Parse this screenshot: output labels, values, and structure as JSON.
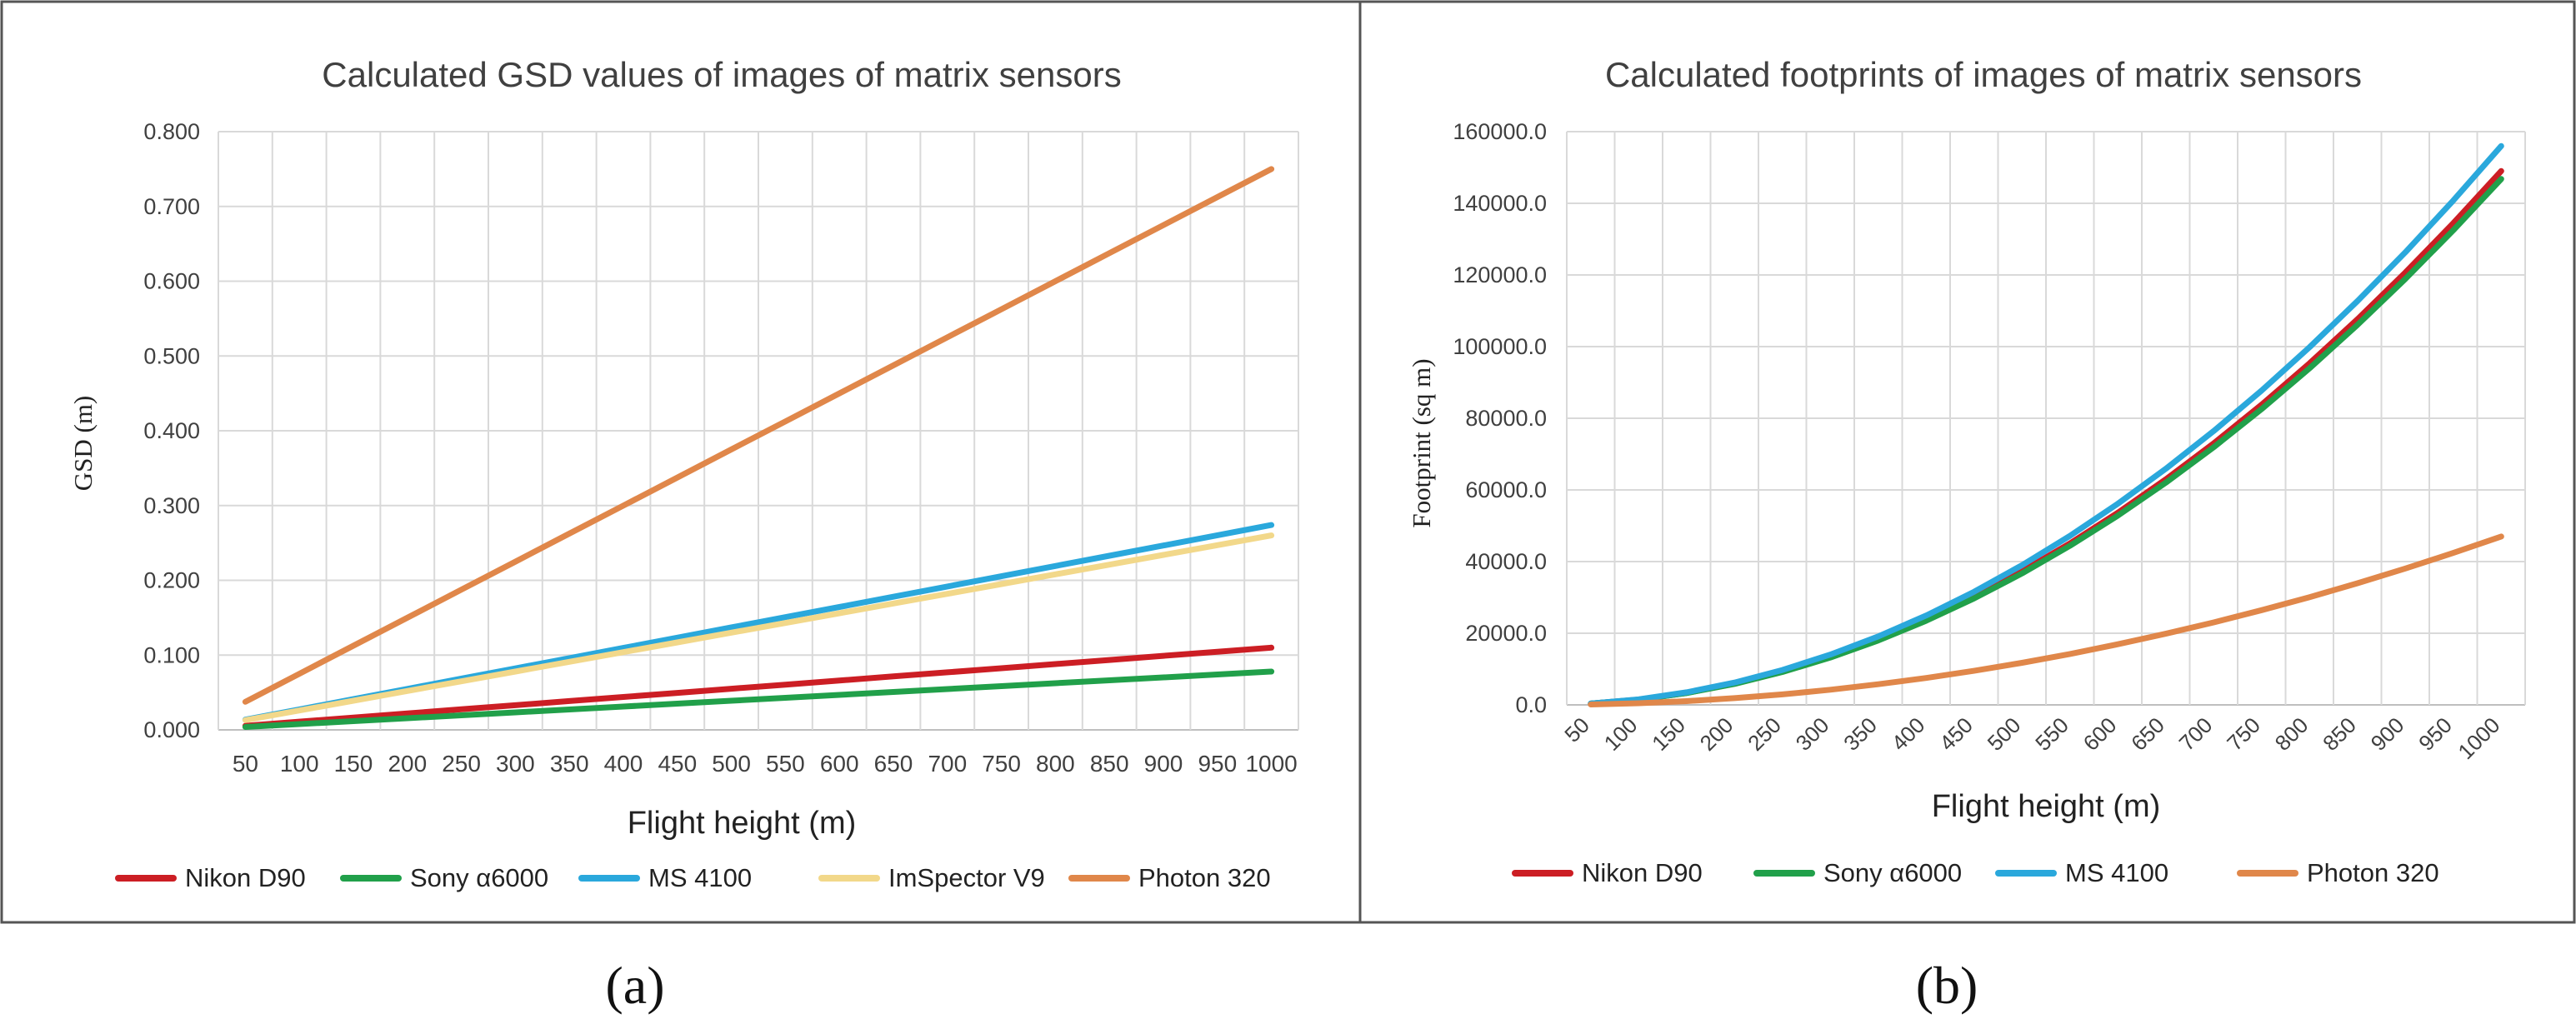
{
  "charts": [
    {
      "caption": "(a)",
      "chart_data": {
        "type": "line",
        "title": "Calculated GSD values of images of matrix sensors",
        "xlabel": "Flight height (m)",
        "ylabel": "GSD (m)",
        "ylim": [
          0,
          0.8
        ],
        "grid": true,
        "legend": "bottom",
        "categories": [
          "50",
          "100",
          "150",
          "200",
          "250",
          "300",
          "350",
          "400",
          "450",
          "500",
          "550",
          "600",
          "650",
          "700",
          "750",
          "800",
          "850",
          "900",
          "950",
          "1000"
        ],
        "y_ticks": [
          "0.000",
          "0.100",
          "0.200",
          "0.300",
          "0.400",
          "0.500",
          "0.600",
          "0.700",
          "0.800"
        ],
        "series": [
          {
            "name": "Nikon D90",
            "color": "#cc1e24",
            "values": [
              0.0055,
              0.011,
              0.0165,
              0.022,
              0.0275,
              0.033,
              0.0385,
              0.044,
              0.0495,
              0.055,
              0.0605,
              0.066,
              0.0715,
              0.077,
              0.0825,
              0.088,
              0.0935,
              0.099,
              0.1045,
              0.11
            ]
          },
          {
            "name": "Sony α6000",
            "color": "#21a04a",
            "values": [
              0.0039,
              0.0078,
              0.0117,
              0.0156,
              0.0195,
              0.0234,
              0.0273,
              0.0312,
              0.0351,
              0.039,
              0.0429,
              0.0468,
              0.0507,
              0.0546,
              0.0585,
              0.0624,
              0.0663,
              0.0702,
              0.0741,
              0.078
            ]
          },
          {
            "name": "MS 4100",
            "color": "#2aa8dc",
            "values": [
              0.0137,
              0.0274,
              0.0411,
              0.0548,
              0.0685,
              0.0822,
              0.0959,
              0.1096,
              0.1233,
              0.137,
              0.1507,
              0.1644,
              0.1781,
              0.1918,
              0.2055,
              0.2192,
              0.2329,
              0.2466,
              0.2603,
              0.274
            ]
          },
          {
            "name": "ImSpector V9",
            "color": "#f2d88a",
            "values": [
              0.013,
              0.026,
              0.039,
              0.052,
              0.065,
              0.078,
              0.091,
              0.104,
              0.117,
              0.13,
              0.143,
              0.156,
              0.169,
              0.182,
              0.195,
              0.208,
              0.221,
              0.234,
              0.247,
              0.26
            ]
          },
          {
            "name": "Photon 320",
            "color": "#e0874a",
            "values": [
              0.0375,
              0.075,
              0.1125,
              0.15,
              0.1875,
              0.225,
              0.2625,
              0.3,
              0.3375,
              0.375,
              0.4125,
              0.45,
              0.4875,
              0.525,
              0.5625,
              0.6,
              0.6375,
              0.675,
              0.7125,
              0.75
            ]
          }
        ]
      }
    },
    {
      "caption": "(b)",
      "chart_data": {
        "type": "line",
        "title": "Calculated footprints of images of matrix sensors",
        "xlabel": "Flight height (m)",
        "ylabel": "Footprint (sq m)",
        "ylim": [
          0,
          160000
        ],
        "grid": true,
        "legend": "bottom",
        "categories": [
          "50",
          "100",
          "150",
          "200",
          "250",
          "300",
          "350",
          "400",
          "450",
          "500",
          "550",
          "600",
          "650",
          "700",
          "750",
          "800",
          "850",
          "900",
          "950",
          "1000"
        ],
        "y_ticks": [
          "0.0",
          "20000.0",
          "40000.0",
          "60000.0",
          "80000.0",
          "100000.0",
          "120000.0",
          "140000.0",
          "160000.0"
        ],
        "series": [
          {
            "name": "Nikon D90",
            "color": "#cc1e24",
            "values": [
              372,
              1490,
              3353,
              5960,
              9313,
              13410,
              18253,
              23840,
              30173,
              37250,
              45073,
              53640,
              62953,
              73010,
              83813,
              95360,
              107653,
              120690,
              134473,
              149000
            ]
          },
          {
            "name": "Sony α6000",
            "color": "#21a04a",
            "values": [
              367,
              1468,
              3303,
              5872,
              9175,
              13212,
              17983,
              23488,
              29727,
              36700,
              44407,
              52848,
              62023,
              71932,
              82575,
              93952,
              106063,
              118908,
              132487,
              146800
            ]
          },
          {
            "name": "MS 4100",
            "color": "#2aa8dc",
            "values": [
              390,
              1560,
              3510,
              6240,
              9750,
              14040,
              19110,
              24960,
              31590,
              39000,
              47190,
              56160,
              65910,
              76440,
              87750,
              99840,
              112710,
              126360,
              140790,
              156000
            ]
          },
          {
            "name": "Photon 320",
            "color": "#e0874a",
            "values": [
              118,
              470,
              1058,
              1880,
              2938,
              4230,
              5758,
              7520,
              9518,
              11750,
              14218,
              16920,
              19858,
              23030,
              26438,
              30080,
              33958,
              38070,
              42418,
              47000
            ]
          }
        ]
      }
    }
  ]
}
